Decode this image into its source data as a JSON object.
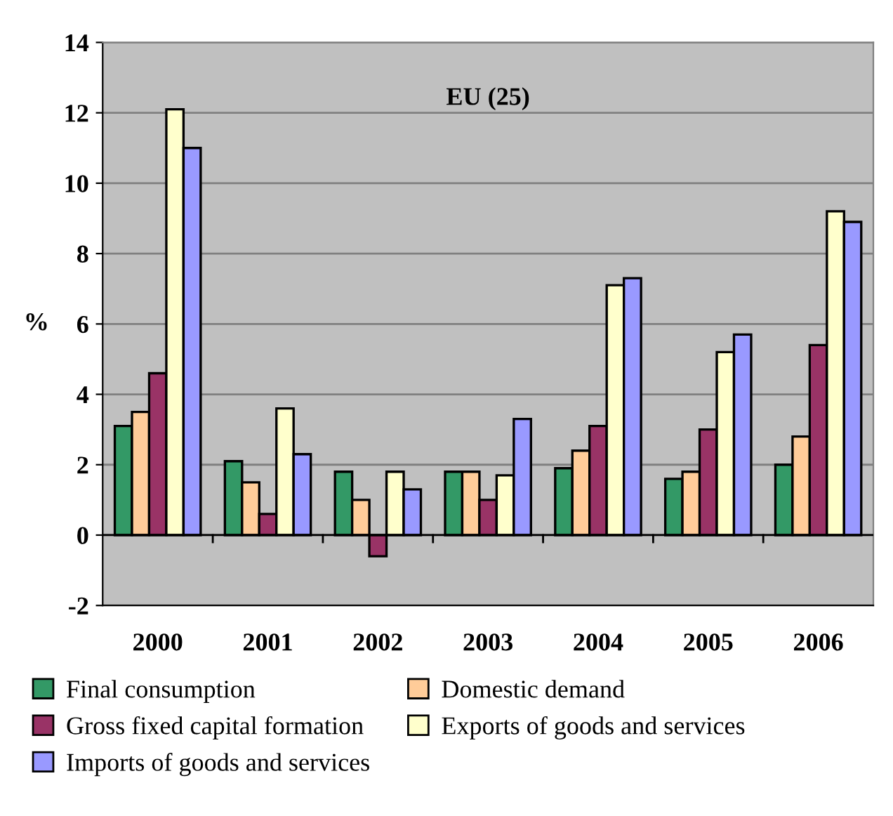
{
  "chart_data": {
    "type": "bar",
    "title": "EU (25)",
    "ylabel": "%",
    "categories": [
      "2000",
      "2001",
      "2002",
      "2003",
      "2004",
      "2005",
      "2006"
    ],
    "series": [
      {
        "name": "Final consumption",
        "color": "#339966",
        "values": [
          3.1,
          2.1,
          1.8,
          1.8,
          1.9,
          1.6,
          2.0
        ]
      },
      {
        "name": "Domestic demand",
        "color": "#ffcc99",
        "values": [
          3.5,
          1.5,
          1.0,
          1.8,
          2.4,
          1.8,
          2.8
        ]
      },
      {
        "name": "Gross fixed capital formation",
        "color": "#993366",
        "values": [
          4.6,
          0.6,
          -0.6,
          1.0,
          3.1,
          3.0,
          5.4
        ]
      },
      {
        "name": "Exports of goods and services",
        "color": "#ffffcc",
        "values": [
          12.1,
          3.6,
          1.8,
          1.7,
          7.1,
          5.2,
          9.2
        ]
      },
      {
        "name": "Imports of goods and services",
        "color": "#9999ff",
        "values": [
          11.0,
          2.3,
          1.3,
          3.3,
          7.3,
          5.7,
          8.9
        ]
      }
    ],
    "ylim": [
      -2,
      14
    ],
    "yticks": [
      -2,
      0,
      2,
      4,
      6,
      8,
      10,
      12,
      14
    ],
    "grid": "y",
    "legend": "bottom"
  }
}
